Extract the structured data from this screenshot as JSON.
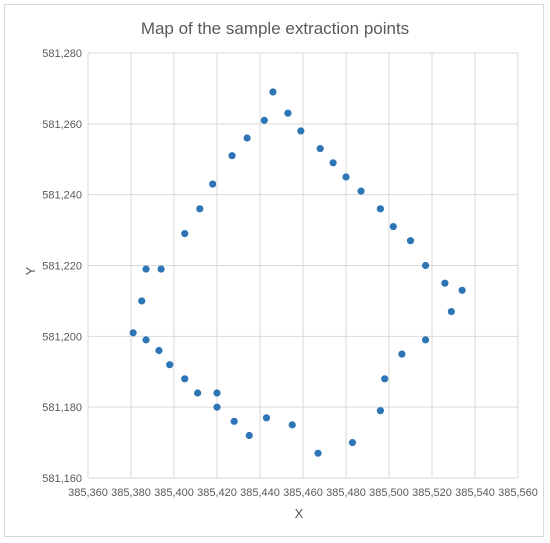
{
  "chart_data": {
    "type": "scatter",
    "title": "Map of the sample extraction points",
    "xlabel": "X",
    "ylabel": "Y",
    "xlim": [
      385360,
      385560
    ],
    "ylim": [
      581160,
      581280
    ],
    "x_ticks": [
      385360,
      385380,
      385400,
      385420,
      385440,
      385460,
      385480,
      385500,
      385520,
      385540,
      385560
    ],
    "y_ticks": [
      581160,
      581180,
      581200,
      581220,
      581240,
      581260,
      581280
    ],
    "x_tick_labels": [
      "385,360",
      "385,380",
      "385,400",
      "385,420",
      "385,440",
      "385,460",
      "385,480",
      "385,500",
      "385,520",
      "385,540",
      "385,560"
    ],
    "y_tick_labels": [
      "581,160",
      "581,180",
      "581,200",
      "581,220",
      "581,240",
      "581,260",
      "581,280"
    ],
    "grid": true,
    "marker_color": "#2e75b6",
    "series": [
      {
        "x": [
          385446,
          385453,
          385442,
          385459,
          385434,
          385468,
          385427,
          385474,
          385480,
          385418,
          385487,
          385412,
          385496,
          385502,
          385405,
          385510,
          385387,
          385394,
          385517,
          385526,
          385534,
          385385,
          385529,
          385381,
          385387,
          385517,
          385506,
          385393,
          385498,
          385398,
          385405,
          385411,
          385420,
          385420,
          385496,
          385443,
          385428,
          385455,
          385435,
          385483,
          385467
        ],
        "y": [
          581269,
          581263,
          581261,
          581258,
          581256,
          581253,
          581251,
          581249,
          581245,
          581243,
          581241,
          581236,
          581236,
          581231,
          581229,
          581227,
          581219,
          581219,
          581220,
          581215,
          581213,
          581210,
          581207,
          581201,
          581199,
          581199,
          581195,
          581196,
          581188,
          581192,
          581188,
          581184,
          581184,
          581180,
          581179,
          581177,
          581176,
          581175,
          581172,
          581170,
          581167
        ]
      }
    ]
  }
}
